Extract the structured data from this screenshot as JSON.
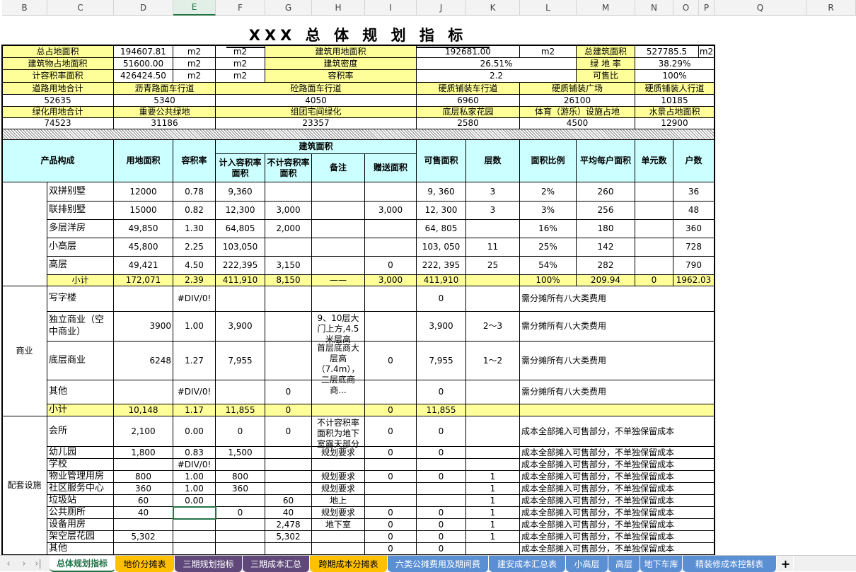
{
  "columns": [
    "B",
    "C",
    "D",
    "E",
    "F",
    "G",
    "H",
    "I",
    "J",
    "K",
    "L",
    "M",
    "N",
    "O",
    "P",
    "Q",
    "R"
  ],
  "selected_column": "E",
  "title": "XXX 总 体 规 划 指 标",
  "summary_rows": [
    [
      "总占地面积",
      "194607.81",
      "m2",
      "m2",
      "建筑用地面积",
      "192681.00",
      "m2",
      "总建筑面积",
      "527785.5",
      "m2"
    ],
    [
      "建筑物占地面积",
      "51600.00",
      "m2",
      "m2",
      "建筑密度",
      "26.51%",
      "绿 地 率",
      "38.29%"
    ],
    [
      "计容积率面积",
      "426424.50",
      "m2",
      "m2",
      "容积率",
      "2.2",
      "可售比",
      "100%"
    ],
    [
      "道路用地合计",
      "沥青路面车行道",
      "砼路面车行道",
      "硬质铺装车行道",
      "硬质铺装广场",
      "硬质铺装人行道"
    ],
    [
      "52635",
      "5340",
      "4050",
      "6960",
      "26100",
      "10185"
    ],
    [
      "绿化用地合计",
      "重要公共绿地",
      "组团宅间绿化",
      "底层私家花园",
      "体育（游乐）设施占地",
      "水景占地面积"
    ],
    [
      "74523",
      "31186",
      "23357",
      "2580",
      "4500",
      "12900"
    ]
  ],
  "table_header": {
    "product": "产品构成",
    "land_area": "用地面积",
    "far": "容积率",
    "building_area": "建筑面积",
    "counted_area": "计入容积率面积",
    "uncounted_area": "不计容积率面积",
    "remark": "备注",
    "gift_area": "赠送面积",
    "saleable_area": "可售面积",
    "floors": "层数",
    "area_ratio": "面积比例",
    "avg_unit_area": "平均每户面积",
    "units": "单元数",
    "households": "户数"
  },
  "groups": [
    {
      "label": "",
      "rows": [
        [
          "双拼别墅",
          "12000",
          "0.78",
          "9,360",
          "",
          "",
          "",
          "9, 360",
          "3",
          "2%",
          "260",
          "",
          "36"
        ],
        [
          "联排别墅",
          "15000",
          "0.82",
          "12,300",
          "3,000",
          "",
          "3,000",
          "12, 300",
          "3",
          "3%",
          "256",
          "",
          "48"
        ],
        [
          "多层洋房",
          "49,850",
          "1.30",
          "64,805",
          "2,000",
          "",
          "",
          "64, 805",
          "",
          "16%",
          "180",
          "",
          "360"
        ],
        [
          "小高层",
          "45,800",
          "2.25",
          "103,050",
          "",
          "",
          "",
          "103, 050",
          "11",
          "25%",
          "142",
          "",
          "728"
        ],
        [
          "高层",
          "49,421",
          "4.50",
          "222,395",
          "3,150",
          "",
          "0",
          "222, 395",
          "25",
          "54%",
          "282",
          "",
          "790"
        ]
      ],
      "subtotal": [
        "小计",
        "172,071",
        "2.39",
        "411,910",
        "8,150",
        "——",
        "3,000",
        "411,910",
        "",
        "100%",
        "209.94",
        "0",
        "1962.03"
      ]
    },
    {
      "label": "商业",
      "rows": [
        [
          "写字楼",
          "",
          "#DIV/0!",
          "",
          "",
          "",
          "",
          "0",
          "",
          "需分摊所有八大类费用"
        ],
        [
          "独立商业（空中商业）",
          "3900",
          "1.00",
          "3,900",
          "",
          "9、10层大门上方,4.5米层高",
          "",
          "3,900",
          "2～3",
          "需分摊所有八大类费用"
        ],
        [
          "底层商业",
          "6248",
          "1.27",
          "7,955",
          "",
          "首层底商大层高（7.4m），二层底商商...",
          "0",
          "7,955",
          "1～2",
          "需分摊所有八大类费用"
        ],
        [
          "其他",
          "",
          "#DIV/0!",
          "",
          "0",
          "",
          "",
          "0",
          "",
          "需分摊所有八大类费用"
        ]
      ],
      "subtotal": [
        "小计",
        "10,148",
        "1.17",
        "11,855",
        "0",
        "",
        "0",
        "11,855",
        "",
        ""
      ]
    },
    {
      "label": "配套设施",
      "rows": [
        [
          "会所",
          "2,100",
          "0.00",
          "0",
          "0",
          "不计容积率面积为地下室露天部分",
          "0",
          "0",
          "",
          "成本全部摊入可售部分，不单独保留成本"
        ],
        [
          "幼儿园",
          "1,800",
          "0.83",
          "1,500",
          "",
          "规划要求",
          "0",
          "0",
          "",
          "成本全部摊入可售部分，不单独保留成本"
        ],
        [
          "学校",
          "",
          "#DIV/0!",
          "",
          "",
          "",
          "",
          "",
          "",
          "成本全部摊入可售部分，不单独保留成本"
        ],
        [
          "物业管理用房",
          "800",
          "1.00",
          "800",
          "",
          "规划要求",
          "0",
          "0",
          "1",
          "成本全部摊入可售部分，不单独保留成本"
        ],
        [
          "社区服务中心",
          "360",
          "1.00",
          "360",
          "",
          "规划要求",
          "",
          "",
          "1",
          "成本全部摊入可售部分，不单独保留成本"
        ],
        [
          "垃圾站",
          "60",
          "0.00",
          "",
          "60",
          "地上",
          "",
          "",
          "1",
          "成本全部摊入可售部分，不单独保留成本"
        ],
        [
          "公共厕所",
          "40",
          "",
          "0",
          "40",
          "规划要求",
          "0",
          "0",
          "1",
          "成本全部摊入可售部分，不单独保留成本"
        ],
        [
          "设备用房",
          "",
          "",
          "",
          "2,478",
          "地下室",
          "0",
          "0",
          "1",
          "成本全部摊入可售部分，不单独保留成本"
        ],
        [
          "架空层花园",
          "5,302",
          "",
          "",
          "5,302",
          "",
          "0",
          "0",
          "1",
          "成本全部摊入可售部分，不单独保留成本"
        ],
        [
          "其他",
          "",
          "",
          "",
          "",
          "",
          "0",
          "0",
          "",
          "成本全部摊入可售部分，不单独保留成本"
        ]
      ]
    }
  ],
  "sheet_tabs": [
    {
      "label": "总体规划指标",
      "active": true,
      "color": "#ffffff"
    },
    {
      "label": "地价分摊表",
      "color": "#ffc000"
    },
    {
      "label": "三期规划指标",
      "color": "#60497a"
    },
    {
      "label": "三期成本汇总",
      "color": "#60497a"
    },
    {
      "label": "跨期成本分摊表",
      "color": "#ffc000"
    },
    {
      "label": "六类公摊费用及期间费",
      "color": "#5b8fd4"
    },
    {
      "label": "建安成本汇总表",
      "color": "#5b8fd4"
    },
    {
      "label": "小高层",
      "color": "#5b8fd4"
    },
    {
      "label": "高层",
      "color": "#5b8fd4"
    },
    {
      "label": "地下车库",
      "color": "#5b8fd4"
    },
    {
      "label": "精装修成本控制表",
      "color": "#5b8fd4"
    }
  ],
  "add_sheet": "+",
  "nav_icons": [
    "first-sheet-icon",
    "prev-sheet-icon",
    "next-sheet-icon",
    "last-sheet-icon"
  ],
  "colors": {
    "label_fill": "#ffff99",
    "header_fill": "#ccffff",
    "accent": "#217346"
  }
}
